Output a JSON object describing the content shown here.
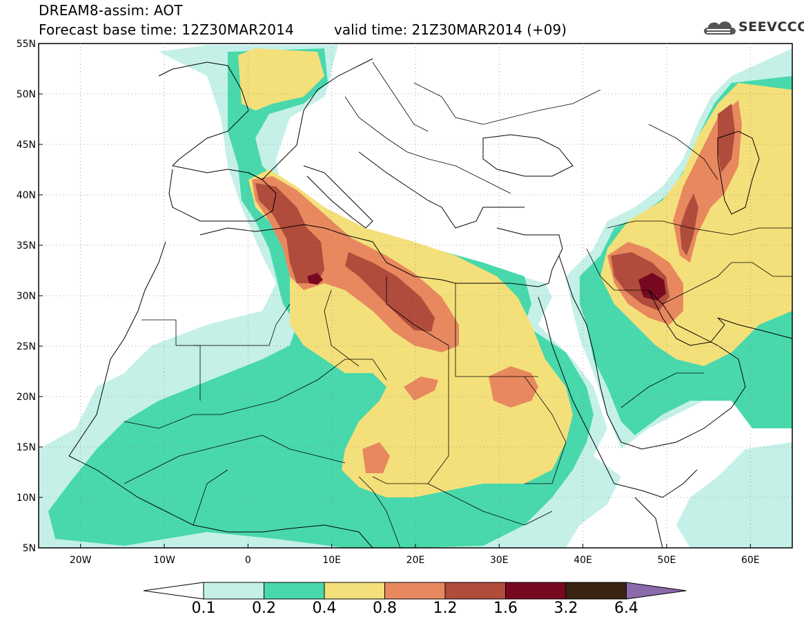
{
  "header": {
    "title": "DREAM8-assim: AOT",
    "base_time": "Forecast base time: 12Z30MAR2014",
    "valid_time": "valid time: 21Z30MAR2014 (+09)",
    "logo_text": "SEEVCCC"
  },
  "axes": {
    "lat_labels": [
      "55N",
      "50N",
      "45N",
      "40N",
      "35N",
      "30N",
      "25N",
      "20N",
      "15N",
      "10N",
      "5N"
    ],
    "lon_labels": [
      "20W",
      "10W",
      "0",
      "10E",
      "20E",
      "30E",
      "40E",
      "50E",
      "60E"
    ]
  },
  "colorbar": {
    "labels": [
      "0.1",
      "0.2",
      "0.4",
      "0.8",
      "1.2",
      "1.6",
      "3.2",
      "6.4"
    ],
    "colors": [
      "#c4f0e8",
      "#48d8ac",
      "#f4e07a",
      "#e8885e",
      "#b04c3c",
      "#780820",
      "#3a2412",
      "#8a6aaa"
    ]
  },
  "palette": {
    "c1": "#c4f0e8",
    "c2": "#48d8ac",
    "c3": "#f4e07a",
    "c4": "#e8885e",
    "c5": "#b04c3c",
    "c6": "#780820"
  }
}
